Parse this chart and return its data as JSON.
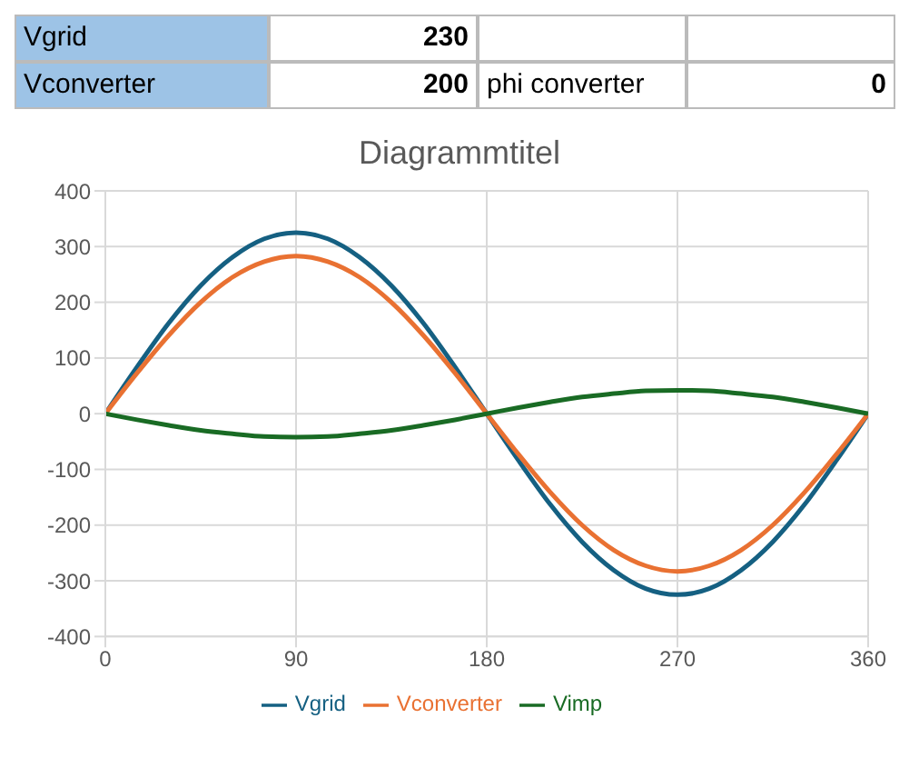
{
  "chart_data": {
    "type": "line",
    "title": "Diagrammtitel",
    "annotations": [
      "Vgrid",
      "230",
      "Vconverter",
      "200",
      "phi converter",
      "0"
    ],
    "x": [
      0,
      15,
      30,
      45,
      60,
      75,
      90,
      105,
      120,
      135,
      150,
      165,
      180,
      195,
      210,
      225,
      240,
      255,
      270,
      285,
      300,
      315,
      330,
      345,
      360
    ],
    "series": [
      {
        "name": "Vgrid",
        "color": "#156082",
        "values": [
          0,
          84,
          163,
          230,
          281,
          314,
          325,
          314,
          281,
          230,
          163,
          84,
          0,
          -84,
          -163,
          -230,
          -281,
          -314,
          -325,
          -314,
          -281,
          -230,
          -163,
          -84,
          0
        ]
      },
      {
        "name": "Vconverter",
        "color": "#e97132",
        "values": [
          0,
          73,
          141,
          200,
          245,
          273,
          283,
          273,
          245,
          200,
          141,
          73,
          0,
          -73,
          -141,
          -200,
          -245,
          -273,
          -283,
          -273,
          -245,
          -200,
          -141,
          -73,
          0
        ]
      },
      {
        "name": "Vimp",
        "color": "#196b24",
        "values": [
          0,
          -11,
          -21,
          -30,
          -36,
          -41,
          -42,
          -41,
          -36,
          -30,
          -21,
          -11,
          0,
          11,
          21,
          30,
          36,
          41,
          42,
          41,
          36,
          30,
          21,
          11,
          0
        ]
      }
    ],
    "xlim": [
      0,
      360
    ],
    "xticks": [
      0,
      90,
      180,
      270,
      360
    ],
    "ylim": [
      -400,
      400
    ],
    "yticks": [
      -400,
      -300,
      -200,
      -100,
      0,
      100,
      200,
      300,
      400
    ],
    "grid": true,
    "legend": "bottom",
    "marker": "none",
    "line_style": "solid"
  }
}
